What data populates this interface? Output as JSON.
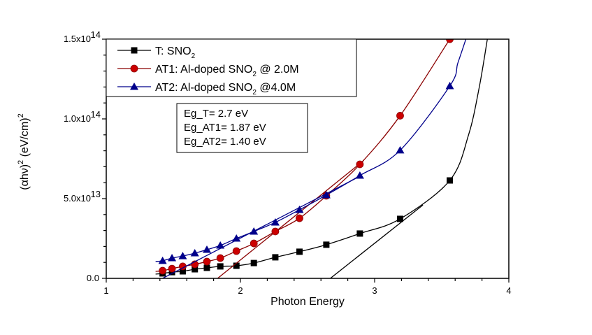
{
  "chart_data": {
    "type": "line",
    "title": "",
    "xlabel": "Photon Energy",
    "ylabel": "(αhν)² (eV/cm)²",
    "xlim": [
      1,
      4
    ],
    "ylim": [
      0,
      150000000000000.0
    ],
    "grid": false,
    "legend_position": "top-left",
    "x_ticks": [
      {
        "value": 1,
        "label": "1"
      },
      {
        "value": 2,
        "label": "2"
      },
      {
        "value": 3,
        "label": "3"
      },
      {
        "value": 4,
        "label": "4"
      }
    ],
    "y_ticks": [
      {
        "value": 0,
        "mantissa": "0.0",
        "exp": ""
      },
      {
        "value": 50000000000000.0,
        "mantissa": "5.0x10",
        "exp": "13"
      },
      {
        "value": 100000000000000.0,
        "mantissa": "1.0x10",
        "exp": "14"
      },
      {
        "value": 150000000000000.0,
        "mantissa": "1.5x10",
        "exp": "14"
      }
    ],
    "series": [
      {
        "name": "T",
        "legend_prefix": "T: SNO",
        "legend_sub": "2",
        "legend_suffix": "",
        "color": "#000000",
        "marker": "square",
        "x": [
          1.42,
          1.49,
          1.57,
          1.66,
          1.75,
          1.85,
          1.97,
          2.1,
          2.26,
          2.44,
          2.64,
          2.89,
          3.19,
          3.56
        ],
        "y": [
          3100000000000.0,
          3900000000000.0,
          4400000000000.0,
          5700000000000.0,
          6600000000000.0,
          7500000000000.0,
          7900000000000.0,
          9600000000000.0,
          13200000000000.0,
          16700000000000.0,
          21100000000000.0,
          28100000000000.0,
          37300000000000.0,
          61400000000000.0
        ],
        "curve_extension": [
          [
            3.7,
            90000000000000.0
          ],
          [
            3.78,
            120000000000000.0
          ],
          [
            3.84,
            150000000000000.0
          ]
        ],
        "tangent": [
          [
            2.67,
            0
          ],
          [
            3.36,
            46000000000000.0
          ]
        ]
      },
      {
        "name": "AT1",
        "legend_prefix": "AT1: Al-doped SNO",
        "legend_sub": "2",
        "legend_suffix": " @ 2.0M",
        "color": "#cc0000",
        "line_color": "#8b0000",
        "marker": "circle",
        "x": [
          1.42,
          1.49,
          1.57,
          1.66,
          1.75,
          1.85,
          1.97,
          2.1,
          2.26,
          2.44,
          2.64,
          2.89,
          3.19,
          3.56
        ],
        "y": [
          4800000000000.0,
          6100000000000.0,
          7500000000000.0,
          8800000000000.0,
          10500000000000.0,
          12700000000000.0,
          17100000000000.0,
          21900000000000.0,
          29400000000000.0,
          37700000000000.0,
          51800000000000.0,
          71500000000000.0,
          102000000000000.0,
          150000000000000.0
        ],
        "curve_extension": [],
        "tangent": [
          [
            1.83,
            0
          ],
          [
            2.92,
            74000000000000.0
          ]
        ]
      },
      {
        "name": "AT2",
        "legend_prefix": "AT2: Al-doped SNO",
        "legend_sub": "2",
        "legend_suffix": " @4.0M",
        "color": "#00008b",
        "line_color": "#00008b",
        "marker": "triangle",
        "x": [
          1.42,
          1.49,
          1.57,
          1.66,
          1.75,
          1.85,
          1.97,
          2.1,
          2.26,
          2.44,
          2.64,
          2.89,
          3.19,
          3.56
        ],
        "y": [
          11000000000000.0,
          12700000000000.0,
          14000000000000.0,
          15800000000000.0,
          18000000000000.0,
          20600000000000.0,
          25000000000000.0,
          29400000000000.0,
          35100000000000.0,
          43000000000000.0,
          52200000000000.0,
          64500000000000.0,
          80300000000000.0,
          120600000000000.0
        ],
        "curve_extension": [
          [
            3.62,
            135000000000000.0
          ],
          [
            3.68,
            150000000000000.0
          ]
        ],
        "tangent": [
          [
            1.42,
            0
          ],
          [
            2.89,
            64000000000000.0
          ]
        ]
      }
    ],
    "annotation": {
      "lines": [
        "Eg_T= 2.7 eV",
        "Eg_AT1= 1.87 eV",
        "Eg_AT2= 1.40 eV"
      ]
    },
    "band_gaps": [
      {
        "sample": "T",
        "value_eV": 2.7
      },
      {
        "sample": "AT1",
        "value_eV": 1.87
      },
      {
        "sample": "AT2",
        "value_eV": 1.4
      }
    ]
  }
}
